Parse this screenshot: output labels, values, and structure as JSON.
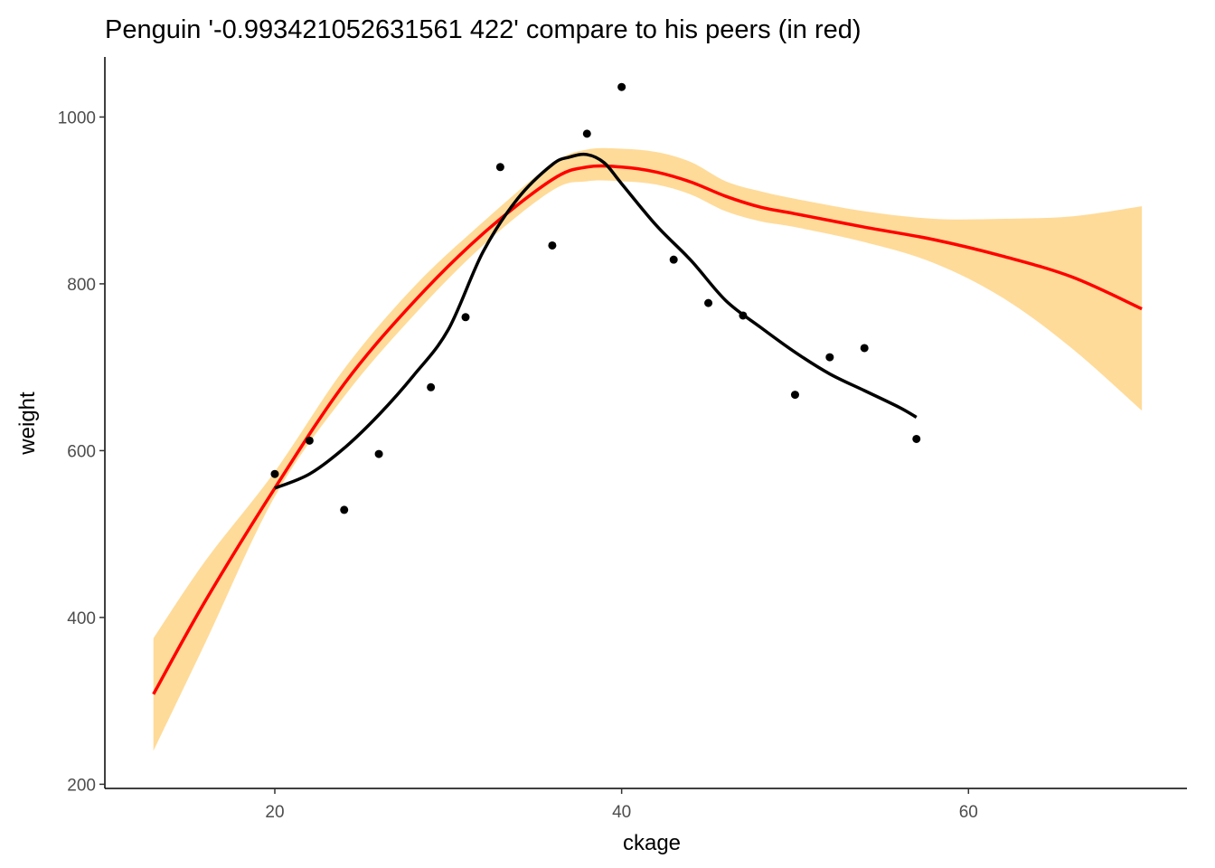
{
  "chart_data": {
    "type": "scatter",
    "title": "Penguin '-0.993421052631561 422' compare to his peers (in red)",
    "xlabel": "ckage",
    "ylabel": "weight",
    "xlim": [
      10.2,
      72.6
    ],
    "ylim": [
      195,
      1072
    ],
    "xticks": [
      20,
      40,
      60
    ],
    "yticks": [
      200,
      400,
      600,
      800,
      1000
    ],
    "grid": false,
    "colors": {
      "points": "#000000",
      "individual_line": "#000000",
      "peer_line": "#ff0000",
      "peer_band": "#ffdb99"
    },
    "series": [
      {
        "type": "scatter",
        "x": [
          20,
          22,
          24,
          26,
          29,
          31,
          33,
          36,
          38,
          40,
          43,
          45,
          47,
          50,
          52,
          54,
          57
        ],
        "y": [
          572,
          612,
          529,
          596,
          676,
          760,
          940,
          846,
          980,
          1036,
          829,
          777,
          762,
          667,
          712,
          723,
          614
        ]
      },
      {
        "type": "line",
        "x": [
          20,
          22,
          24,
          26,
          28,
          30,
          32,
          34,
          36,
          37,
          38,
          39,
          40,
          42,
          44,
          46,
          48,
          50,
          52,
          54,
          56,
          57
        ],
        "y": [
          555,
          572,
          603,
          643,
          690,
          745,
          838,
          902,
          943,
          952,
          955,
          945,
          920,
          870,
          828,
          780,
          748,
          718,
          692,
          672,
          652,
          640
        ]
      },
      {
        "type": "line",
        "x": [
          13,
          16,
          20,
          24,
          28,
          32,
          36,
          38,
          40,
          42,
          44,
          46,
          48,
          50,
          54,
          58,
          62,
          66,
          70
        ],
        "y": [
          308,
          420,
          555,
          680,
          778,
          860,
          925,
          940,
          940,
          934,
          922,
          905,
          892,
          884,
          868,
          853,
          833,
          808,
          770
        ]
      },
      {
        "type": "area",
        "x": [
          13,
          16,
          20,
          24,
          28,
          32,
          36,
          38,
          40,
          42,
          44,
          46,
          48,
          50,
          54,
          58,
          62,
          66,
          70
        ],
        "y_low": [
          240,
          370,
          545,
          665,
          762,
          846,
          912,
          923,
          923,
          919,
          907,
          887,
          875,
          868,
          850,
          825,
          783,
          722,
          648
        ],
        "y_high": [
          375,
          468,
          575,
          698,
          796,
          874,
          944,
          961,
          962,
          958,
          946,
          923,
          911,
          902,
          887,
          878,
          878,
          881,
          893
        ]
      }
    ]
  }
}
